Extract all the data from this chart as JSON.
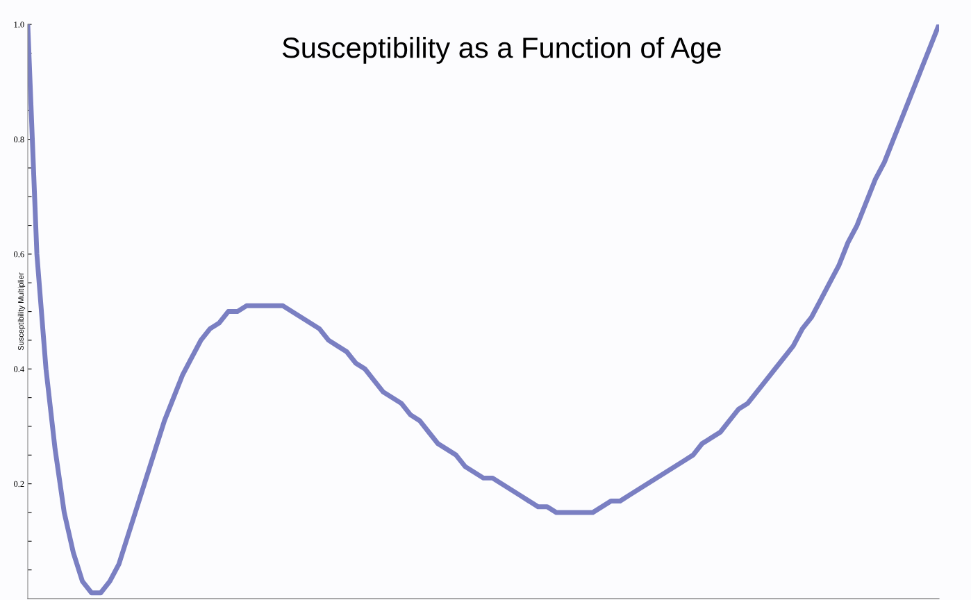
{
  "chart_data": {
    "type": "line",
    "title": "Susceptibility as a Function of Age",
    "ylabel": "Susceptibility Multiplier",
    "categories": [
      null,
      null,
      null,
      null,
      null,
      null,
      null,
      null,
      null,
      null,
      null,
      null,
      null,
      null,
      null,
      null,
      null,
      null,
      null,
      null,
      null,
      null,
      null,
      null,
      null,
      null,
      null,
      null,
      null,
      null,
      null,
      null,
      null,
      null,
      null,
      null,
      null,
      null,
      null,
      null,
      null,
      null,
      null,
      null,
      null,
      null,
      null,
      null,
      null,
      null,
      null,
      null,
      null,
      null,
      null,
      null,
      null,
      null,
      null,
      null,
      null,
      null,
      null,
      null,
      null,
      null,
      null,
      null,
      null,
      null,
      null,
      null,
      null,
      null,
      null,
      null,
      null,
      null,
      null,
      null,
      null,
      null,
      null,
      null,
      null,
      null,
      null,
      null,
      null,
      null,
      null,
      null,
      null,
      null,
      null,
      null,
      null,
      null,
      null,
      null,
      null
    ],
    "series": [
      {
        "color": "#7a7fc2",
        "values": [
          1.0,
          0.6,
          0.4,
          0.26,
          0.15,
          0.08,
          0.03,
          0.01,
          0.01,
          0.03,
          0.06,
          0.11,
          0.16,
          0.21,
          0.26,
          0.31,
          0.35,
          0.39,
          0.42,
          0.45,
          0.47,
          0.48,
          0.5,
          0.5,
          0.51,
          0.51,
          0.51,
          0.51,
          0.51,
          0.5,
          0.49,
          0.48,
          0.47,
          0.45,
          0.44,
          0.43,
          0.41,
          0.4,
          0.38,
          0.36,
          0.35,
          0.34,
          0.32,
          0.31,
          0.29,
          0.27,
          0.26,
          0.25,
          0.23,
          0.22,
          0.21,
          0.21,
          0.2,
          0.19,
          0.18,
          0.17,
          0.16,
          0.16,
          0.15,
          0.15,
          0.15,
          0.15,
          0.15,
          0.16,
          0.17,
          0.17,
          0.18,
          0.19,
          0.2,
          0.21,
          0.22,
          0.23,
          0.24,
          0.25,
          0.27,
          0.28,
          0.29,
          0.31,
          0.33,
          0.34,
          0.36,
          0.38,
          0.4,
          0.42,
          0.44,
          0.47,
          0.49,
          0.52,
          0.55,
          0.58,
          0.62,
          0.65,
          0.69,
          0.73,
          0.76,
          0.8,
          0.84,
          0.88,
          0.92,
          0.96,
          1.0
        ]
      }
    ],
    "ylim": [
      0,
      1.0
    ],
    "yticks": [
      {
        "value": 0.05,
        "label": null
      },
      {
        "value": 0.1,
        "label": null
      },
      {
        "value": 0.15,
        "label": null
      },
      0.2,
      {
        "value": 0.25,
        "label": null
      },
      {
        "value": 0.3,
        "label": null
      },
      {
        "value": 0.35,
        "label": null
      },
      0.4,
      {
        "value": 0.45,
        "label": null
      },
      {
        "value": 0.5,
        "label": null
      },
      {
        "value": 0.55,
        "label": null
      },
      0.6,
      {
        "value": 0.65,
        "label": null
      },
      {
        "value": 0.7,
        "label": null
      },
      {
        "value": 0.75,
        "label": null
      },
      0.8,
      {
        "value": 0.85,
        "label": null
      },
      {
        "value": 0.9,
        "label": null
      },
      {
        "value": 0.95,
        "label": null
      },
      {
        "value": 1.0,
        "label": "1.0"
      }
    ],
    "tick_labels": "y",
    "grid": false
  }
}
